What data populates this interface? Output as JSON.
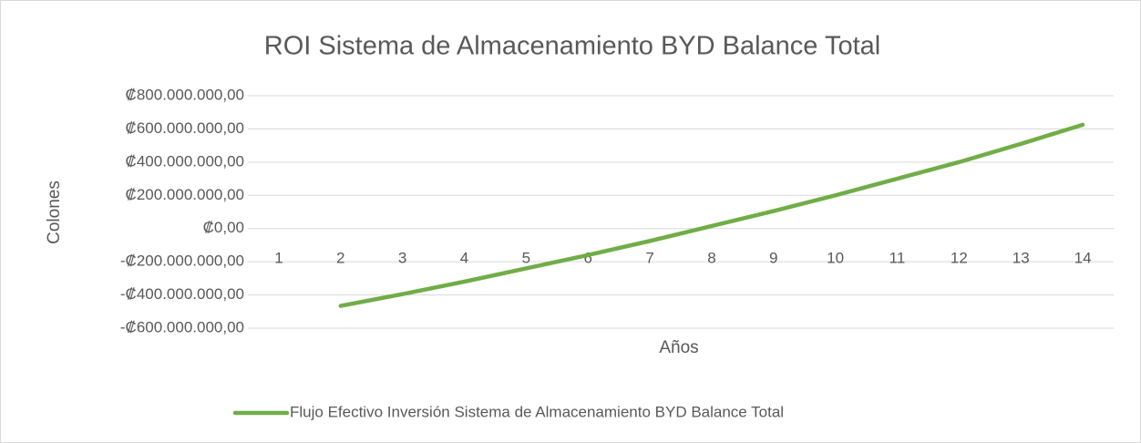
{
  "chart_data": {
    "type": "line",
    "title": "ROI Sistema de Almacenamiento BYD Balance Total",
    "x_label": "Años",
    "y_label": "Colones",
    "categories": [
      "1",
      "2",
      "3",
      "4",
      "5",
      "6",
      "7",
      "8",
      "9",
      "10",
      "11",
      "12",
      "13",
      "14"
    ],
    "series": [
      {
        "name": "Flujo Efectivo Inversión Sistema de Almacenamiento BYD Balance Total",
        "color": "#70ad47",
        "values": [
          null,
          -466000000,
          -395000000,
          -320000000,
          -240000000,
          -160000000,
          -75000000,
          15000000,
          105000000,
          200000000,
          300000000,
          400000000,
          510000000,
          625000000
        ]
      }
    ],
    "ylim": [
      -600000000,
      800000000
    ],
    "yticks": [
      {
        "value": -600000000,
        "label": "-₡600.000.000,00"
      },
      {
        "value": -400000000,
        "label": "-₡400.000.000,00"
      },
      {
        "value": -200000000,
        "label": "-₡200.000.000,00"
      },
      {
        "value": 0,
        "label": "₡0,00"
      },
      {
        "value": 200000000,
        "label": "₡200.000.000,00"
      },
      {
        "value": 400000000,
        "label": "₡400.000.000,00"
      },
      {
        "value": 600000000,
        "label": "₡600.000.000,00"
      },
      {
        "value": 800000000,
        "label": "₡800.000.000,00"
      }
    ],
    "grid": true,
    "legend": "bottom"
  }
}
